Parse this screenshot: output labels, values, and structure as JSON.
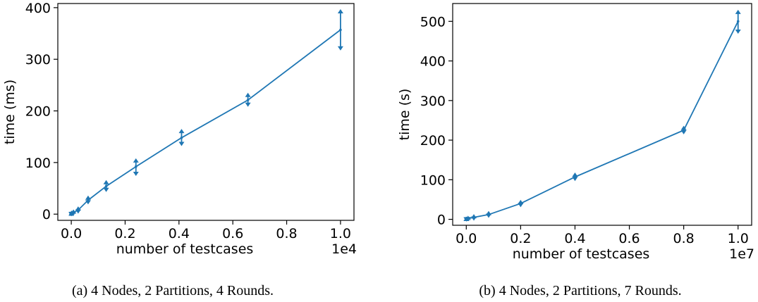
{
  "chart_data": [
    {
      "type": "line",
      "xlabel": "number of testcases",
      "ylabel": "time (ms)",
      "x_offset_label": "1e4",
      "x_ticks": [
        "0.0",
        "0.2",
        "0.4",
        "0.6",
        "0.8",
        "1.0"
      ],
      "y_ticks": [
        "0",
        "100",
        "200",
        "300",
        "400"
      ],
      "xlim": [
        -0.05,
        1.05
      ],
      "ylim": [
        -12,
        408
      ],
      "caption": "(a) 4 Nodes, 2 Partitions, 4 Rounds.",
      "series": [
        {
          "color": "#1f77b4",
          "points": [
            {
              "x": 0.0001,
              "y": 0.5,
              "lo": 0,
              "hi": 1
            },
            {
              "x": 0.0016,
              "y": 1.5,
              "lo": 0.5,
              "hi": 3
            },
            {
              "x": 0.0081,
              "y": 3,
              "lo": 1.5,
              "hi": 5
            },
            {
              "x": 0.0256,
              "y": 8,
              "lo": 5,
              "hi": 11
            },
            {
              "x": 0.0625,
              "y": 27,
              "lo": 23,
              "hi": 32
            },
            {
              "x": 0.1296,
              "y": 54,
              "lo": 47,
              "hi": 62
            },
            {
              "x": 0.2401,
              "y": 92,
              "lo": 78,
              "hi": 104
            },
            {
              "x": 0.4096,
              "y": 148,
              "lo": 136,
              "hi": 161
            },
            {
              "x": 0.6561,
              "y": 221,
              "lo": 212,
              "hi": 231
            },
            {
              "x": 1.0,
              "y": 357,
              "lo": 321,
              "hi": 393
            }
          ]
        }
      ]
    },
    {
      "type": "line",
      "xlabel": "number of testcases",
      "ylabel": "time (s)",
      "x_offset_label": "1e7",
      "x_ticks": [
        "0.0",
        "0.2",
        "0.4",
        "0.6",
        "0.8",
        "1.0"
      ],
      "y_ticks": [
        "0",
        "100",
        "200",
        "300",
        "400",
        "500"
      ],
      "xlim": [
        -0.05,
        1.05
      ],
      "ylim": [
        -15,
        545
      ],
      "caption": "(b) 4 Nodes, 2 Partitions, 7 Rounds.",
      "series": [
        {
          "color": "#1f77b4",
          "points": [
            {
              "x": 0.0001,
              "y": 0.5,
              "lo": 0,
              "hi": 1
            },
            {
              "x": 0.0013,
              "y": 1,
              "lo": 0,
              "hi": 2
            },
            {
              "x": 0.0065,
              "y": 2,
              "lo": 0.5,
              "hi": 4
            },
            {
              "x": 0.0279,
              "y": 5,
              "lo": 2,
              "hi": 8
            },
            {
              "x": 0.0823,
              "y": 12,
              "lo": 9,
              "hi": 16
            },
            {
              "x": 0.2,
              "y": 40,
              "lo": 36,
              "hi": 44
            },
            {
              "x": 0.4,
              "y": 107,
              "lo": 102,
              "hi": 113
            },
            {
              "x": 0.8,
              "y": 225,
              "lo": 220,
              "hi": 231
            },
            {
              "x": 1.0,
              "y": 500,
              "lo": 474,
              "hi": 524
            }
          ]
        }
      ]
    }
  ]
}
